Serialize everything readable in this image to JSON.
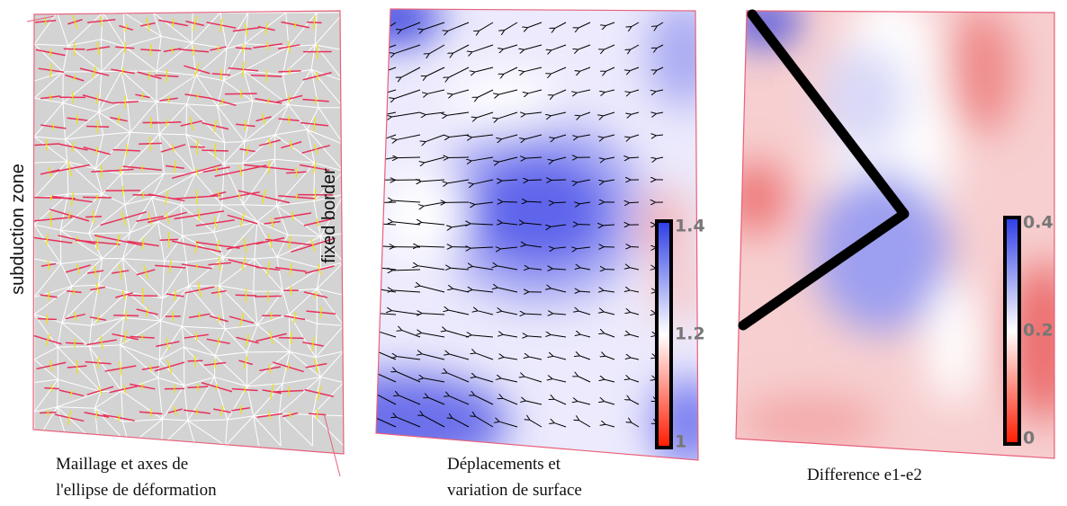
{
  "panels": [
    {
      "caption": [
        "Maillage et axes de",
        "l'ellipse de déformation"
      ],
      "labels": [
        "subduction zone",
        "fixed border"
      ]
    },
    {
      "caption": [
        "Déplacements et",
        "variation de surface"
      ],
      "colorbar": {
        "ticks": [
          1.4,
          1.2,
          1
        ]
      }
    },
    {
      "caption": [
        "Difference e1-e2"
      ],
      "colorbar": {
        "ticks": [
          0.4,
          0.2,
          0
        ]
      }
    }
  ]
}
